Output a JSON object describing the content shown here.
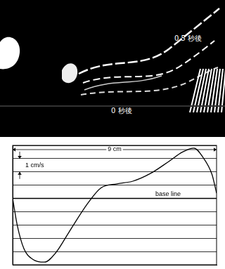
{
  "photo": {
    "labels": [
      "0.5 秒後",
      "0 秒後"
    ]
  },
  "chart_data": {
    "type": "line",
    "x": [
      0,
      0.2,
      0.5,
      0.9,
      1.4,
      1.9,
      2.5,
      3.3,
      3.9,
      4.6,
      5.3,
      6.1,
      6.9,
      7.5,
      8.0,
      8.4,
      8.8,
      9.0
    ],
    "values": [
      0,
      -2.0,
      -3.8,
      -4.6,
      -4.8,
      -4.1,
      -2.5,
      -0.4,
      0.8,
      1.1,
      1.3,
      1.9,
      2.8,
      3.5,
      3.8,
      3.1,
      1.8,
      0.4
    ],
    "color": "#000000",
    "xlim": [
      0,
      9
    ],
    "xticks": [
      0,
      9
    ],
    "ylim": [
      -5,
      4
    ],
    "yticks": [
      -5,
      -4,
      -3,
      -2,
      -1,
      0,
      1,
      2,
      3,
      4
    ],
    "grid": true,
    "tick_labels": false,
    "annotations": [
      {
        "text": "9 cm",
        "x": [
          0,
          9
        ]
      },
      {
        "text": "1 cm/s",
        "y": [
          2,
          3
        ]
      },
      {
        "text": "base line",
        "y": 0
      }
    ]
  }
}
